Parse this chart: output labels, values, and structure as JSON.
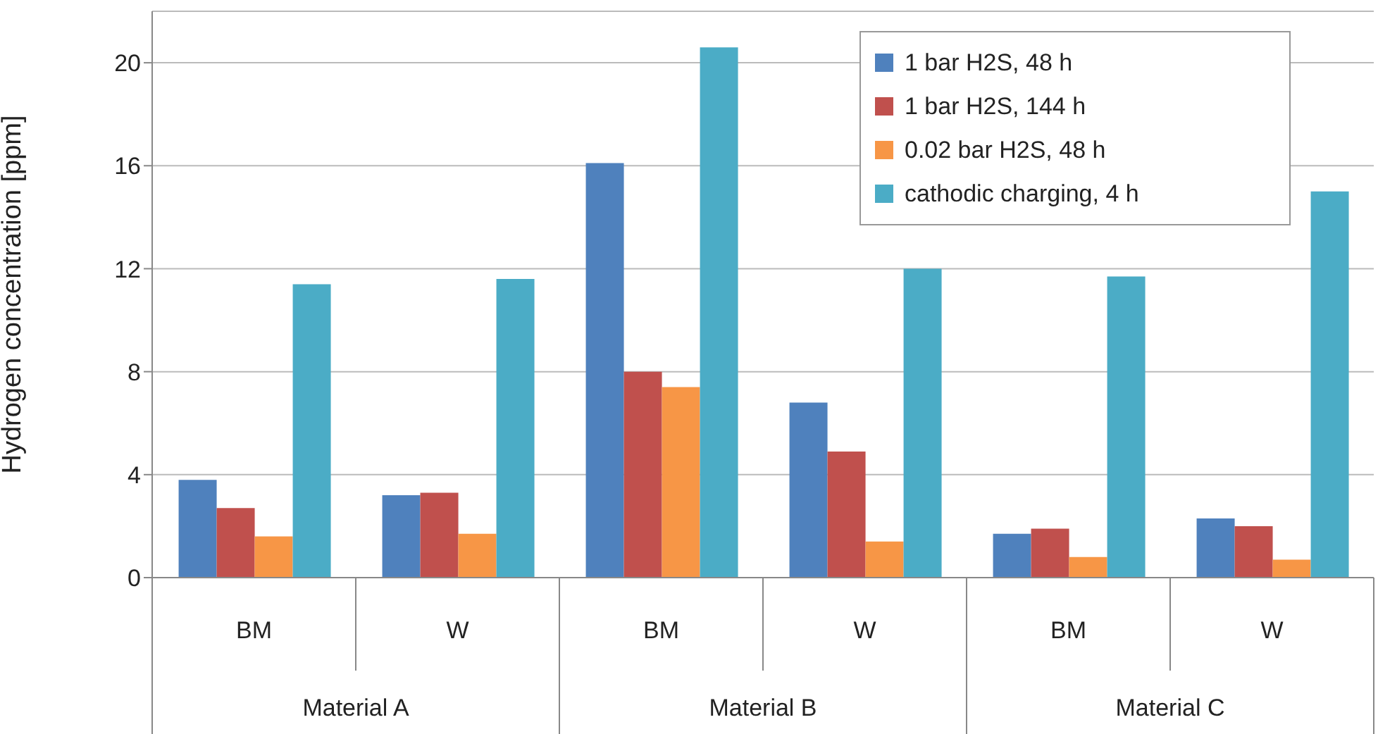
{
  "chart_data": {
    "type": "bar",
    "ylabel": "Hydrogen concentration [ppm]",
    "categories": [
      "BM",
      "W",
      "BM",
      "W",
      "BM",
      "W"
    ],
    "annotations": [
      "Material A",
      "Material B",
      "Material C"
    ],
    "series": [
      {
        "name": "1 bar H2S, 48 h",
        "color": "#4f81bd",
        "values": [
          3.8,
          3.2,
          16.1,
          6.8,
          1.7,
          2.3
        ]
      },
      {
        "name": "1 bar H2S, 144 h",
        "color": "#c0504d",
        "values": [
          2.7,
          3.3,
          8.0,
          4.9,
          1.9,
          2.0
        ]
      },
      {
        "name": "0.02 bar H2S, 48 h",
        "color": "#f79646",
        "values": [
          1.6,
          1.7,
          7.4,
          1.4,
          0.8,
          0.7
        ]
      },
      {
        "name": "cathodic charging, 4 h",
        "color": "#4bacc6",
        "values": [
          11.4,
          11.6,
          20.6,
          12.0,
          11.7,
          15.0
        ]
      }
    ],
    "ylim": [
      0,
      22
    ],
    "yticks": [
      0,
      4,
      8,
      12,
      16,
      20
    ],
    "grid": "y",
    "legend": "top right"
  }
}
